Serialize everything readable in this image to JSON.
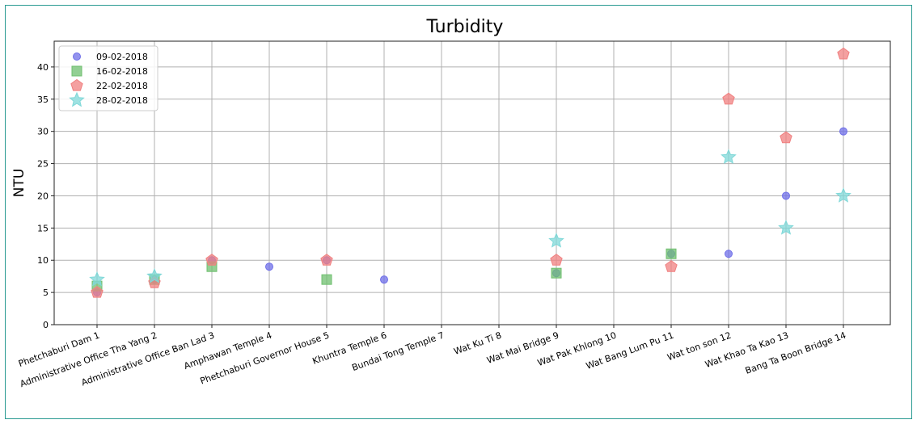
{
  "chart_data": {
    "type": "scatter",
    "title": "Turbidity",
    "xlabel": "",
    "ylabel": "NTU",
    "ylim": [
      0,
      44
    ],
    "yticks": [
      0,
      5,
      10,
      15,
      20,
      25,
      30,
      35,
      40
    ],
    "grid": true,
    "legend_position": "top-left",
    "categories": [
      "Phetchaburi Dam 1",
      "Administrative Office Tha Yang 2",
      "Administrative Office Ban Lad 3",
      "Amphawan Temple 4",
      "Phetchaburi Governor House 5",
      "Khuntra Temple 6",
      "Bundai Tong Temple 7",
      "Wat Ku Ti 8",
      "Wat Mai Bridge 9",
      "Wat Pak Khlong 10",
      "Wat Bang Lum Pu 11",
      "Wat ton son 12",
      "Wat Khao Ta Kao 13",
      "Bang Ta Boon Bridge 14"
    ],
    "series": [
      {
        "name": "09-02-2018",
        "marker": "circle",
        "color": "#6f6fe8",
        "values": [
          5,
          7,
          10,
          9,
          10,
          7,
          null,
          null,
          8,
          null,
          11,
          11,
          20,
          30
        ]
      },
      {
        "name": "16-02-2018",
        "marker": "square",
        "color": "#6fbf6f",
        "values": [
          6,
          7,
          9,
          null,
          7,
          null,
          null,
          null,
          8,
          null,
          11,
          null,
          null,
          null
        ]
      },
      {
        "name": "22-02-2018",
        "marker": "pentagon",
        "color": "#f08080",
        "values": [
          5,
          6.5,
          10,
          null,
          10,
          null,
          null,
          null,
          10,
          null,
          9,
          35,
          29,
          42
        ]
      },
      {
        "name": "28-02-2018",
        "marker": "star",
        "color": "#7fd8d8",
        "values": [
          7,
          7.5,
          null,
          null,
          null,
          null,
          null,
          null,
          13,
          null,
          null,
          26,
          15,
          20
        ]
      }
    ]
  }
}
